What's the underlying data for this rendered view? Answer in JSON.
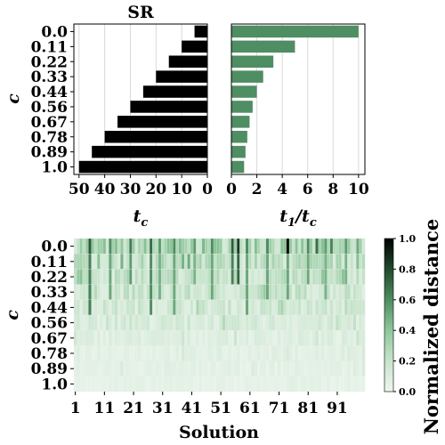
{
  "chart_data": [
    {
      "type": "bar",
      "orientation": "horizontal",
      "title": "SR",
      "xlabel": "t_c",
      "ylabel": "c",
      "categories": [
        "0.0",
        "0.11",
        "0.22",
        "0.33",
        "0.44",
        "0.56",
        "0.67",
        "0.78",
        "0.89",
        "1.0"
      ],
      "values": [
        5,
        10,
        15,
        20,
        25,
        30,
        35,
        40,
        45,
        50
      ],
      "xlim": [
        0,
        52
      ],
      "x_inverted": true,
      "xticks": [
        50,
        40,
        30,
        20,
        10,
        0
      ],
      "grid": "vertical",
      "color": "#000000"
    },
    {
      "type": "bar",
      "orientation": "horizontal",
      "title": "",
      "xlabel": "t_1/t_c",
      "ylabel": "",
      "categories": [
        "0.0",
        "0.11",
        "0.22",
        "0.33",
        "0.44",
        "0.56",
        "0.67",
        "0.78",
        "0.89",
        "1.0"
      ],
      "values": [
        10,
        5,
        3.3,
        2.5,
        2,
        1.67,
        1.43,
        1.25,
        1.11,
        1
      ],
      "xlim": [
        0,
        10.5
      ],
      "xticks": [
        0,
        2,
        4,
        6,
        8,
        10
      ],
      "grid": "vertical",
      "color": "#4f8d62"
    },
    {
      "type": "heatmap",
      "xlabel": "Solution",
      "ylabel": "c",
      "rows": [
        "0.0",
        "0.11",
        "0.22",
        "0.33",
        "0.44",
        "0.56",
        "0.67",
        "0.78",
        "0.89",
        "1.0"
      ],
      "columns_count": 100,
      "xticks": [
        1,
        11,
        21,
        31,
        41,
        51,
        61,
        71,
        81,
        91
      ],
      "colorbar": {
        "label": "Normalized distance",
        "range": [
          0,
          1
        ],
        "ticks": [
          "0.0",
          "0.2",
          "0.4",
          "0.6",
          "0.8",
          "1.0"
        ],
        "colors": [
          "#edf6ee",
          "#c7e4cc",
          "#8fc79b",
          "#4f8d62",
          "#234a2e",
          "#000000"
        ]
      },
      "row_base": [
        0.3,
        0.22,
        0.2,
        0.18,
        0.15,
        0.12,
        0.08,
        0.06,
        0.05,
        0.04
      ],
      "strong_cells": [
        {
          "col": 5,
          "rows": [
            0,
            1,
            2,
            3,
            4
          ],
          "value": 0.75
        },
        {
          "col": 12,
          "rows": [
            0,
            1,
            2,
            3
          ],
          "value": 0.6
        },
        {
          "col": 19,
          "rows": [
            0,
            1,
            2
          ],
          "value": 0.65
        },
        {
          "col": 26,
          "rows": [
            0,
            1,
            2,
            3,
            4
          ],
          "value": 0.7
        },
        {
          "col": 29,
          "rows": [
            0,
            1,
            2,
            3
          ],
          "value": 0.55
        },
        {
          "col": 34,
          "rows": [
            0,
            1,
            2,
            3,
            4
          ],
          "value": 0.6
        },
        {
          "col": 41,
          "rows": [
            0,
            1,
            2
          ],
          "value": 0.55
        },
        {
          "col": 47,
          "rows": [
            0,
            1,
            2,
            3
          ],
          "value": 0.6
        },
        {
          "col": 54,
          "rows": [
            0,
            1,
            2
          ],
          "value": 0.75
        },
        {
          "col": 56,
          "rows": [
            0,
            1,
            2
          ],
          "value": 0.85
        },
        {
          "col": 59,
          "rows": [
            0,
            1,
            2,
            3,
            4
          ],
          "value": 0.6
        },
        {
          "col": 66,
          "rows": [
            0,
            1,
            2,
            3
          ],
          "value": 0.6
        },
        {
          "col": 73,
          "rows": [
            0
          ],
          "value": 1.0
        },
        {
          "col": 73,
          "rows": [
            1,
            2,
            3
          ],
          "value": 0.6
        },
        {
          "col": 80,
          "rows": [
            0,
            1,
            2
          ],
          "value": 0.6
        },
        {
          "col": 86,
          "rows": [
            0,
            1,
            2,
            3
          ],
          "value": 0.55
        },
        {
          "col": 93,
          "rows": [
            0,
            1,
            2
          ],
          "value": 0.55
        },
        {
          "col": 97,
          "rows": [
            0,
            1
          ],
          "value": 0.5
        }
      ]
    }
  ]
}
